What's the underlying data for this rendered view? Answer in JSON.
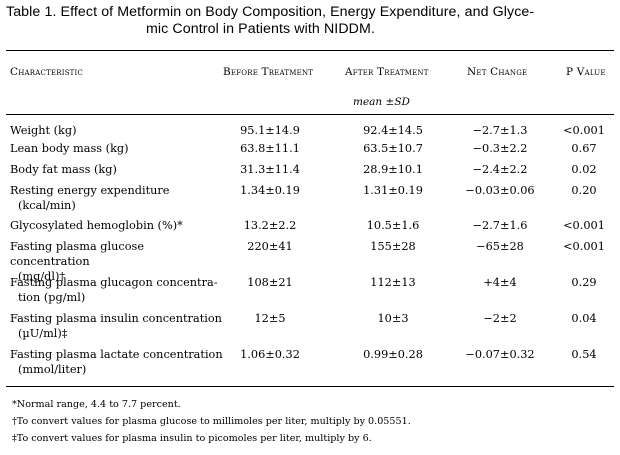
{
  "table": {
    "title_line1": "Table 1. Effect of Metformin on Body Composition, Energy Expenditure, and Glyce-",
    "title_line2": "mic Control in Patients with NIDDM.",
    "columns": {
      "characteristic": "Characteristic",
      "before": "Before Treatment",
      "after": "After Treatment",
      "net": "Net Change",
      "p": "P Value"
    },
    "subheader": "mean ±SD",
    "rows": [
      {
        "label1": "Weight (kg)",
        "label2": "",
        "before": "95.1±14.9",
        "after": "92.4±14.5",
        "net": "−2.7±1.3",
        "p": "<0.001"
      },
      {
        "label1": "Lean body mass (kg)",
        "label2": "",
        "before": "63.8±11.1",
        "after": "63.5±10.7",
        "net": "−0.3±2.2",
        "p": "0.67"
      },
      {
        "label1": "Body fat mass (kg)",
        "label2": "",
        "before": "31.3±11.4",
        "after": "28.9±10.1",
        "net": "−2.4±2.2",
        "p": "0.02"
      },
      {
        "label1": "Resting energy expenditure",
        "label2": "(kcal/min)",
        "before": "1.34±0.19",
        "after": "1.31±0.19",
        "net": "−0.03±0.06",
        "p": "0.20"
      },
      {
        "label1": "Glycosylated hemoglobin (%)*",
        "label2": "",
        "before": "13.2±2.2",
        "after": "10.5±1.6",
        "net": "−2.7±1.6",
        "p": "<0.001"
      },
      {
        "label1": "Fasting plasma glucose concentration",
        "label2": "(mg/dl)†",
        "before": "220±41",
        "after": "155±28",
        "net": "−65±28",
        "p": "<0.001"
      },
      {
        "label1": "Fasting plasma glucagon concentra-",
        "label2": "tion (pg/ml)",
        "before": "108±21",
        "after": "112±13",
        "net": "+4±4",
        "p": "0.29"
      },
      {
        "label1": "Fasting plasma insulin concentration",
        "label2": "(µU/ml)‡",
        "before": "12±5",
        "after": "10±3",
        "net": "−2±2",
        "p": "0.04"
      },
      {
        "label1": "Fasting plasma lactate concentration",
        "label2": "(mmol/liter)",
        "before": "1.06±0.32",
        "after": "0.99±0.28",
        "net": "−0.07±0.32",
        "p": "0.54"
      }
    ],
    "footnotes": [
      "*Normal range, 4.4 to 7.7 percent.",
      "†To convert values for plasma glucose to millimoles per liter, multiply by 0.05551.",
      "‡To convert values for plasma insulin to picomoles per liter, multiply by 6."
    ]
  }
}
